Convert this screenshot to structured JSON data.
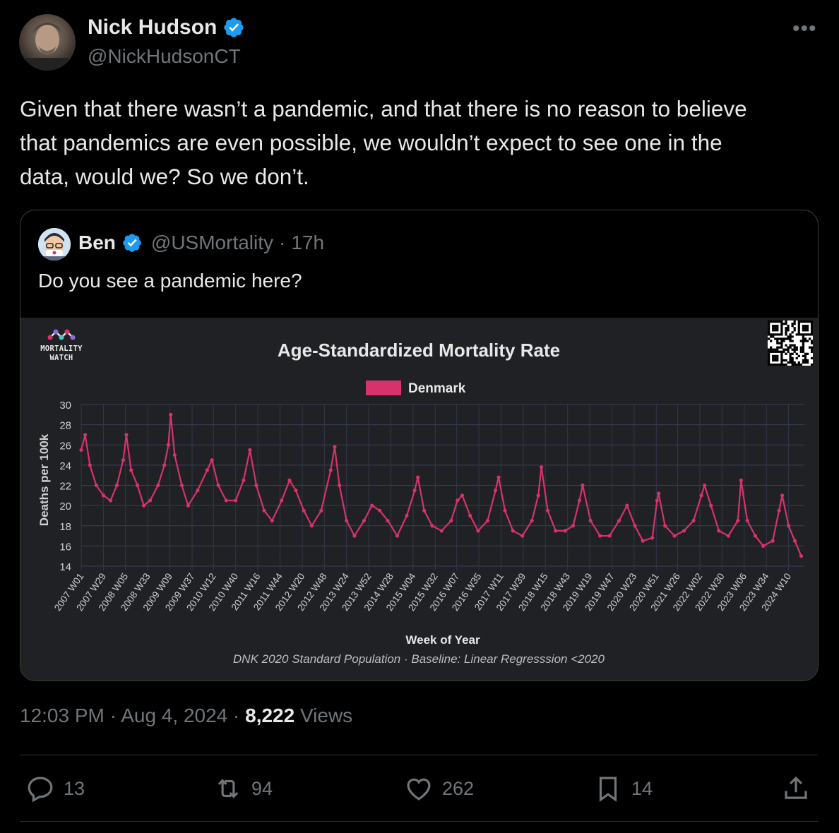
{
  "tweet": {
    "author_name": "Nick Hudson",
    "author_handle": "@NickHudsonCT",
    "text": "Given that there wasn’t a pandemic, and that there is no reason to believe\nthat pandemics are even possible, we wouldn’t expect to see one in the\ndata, would we? So we don’t.",
    "time": "12:03 PM",
    "date": "Aug 4, 2024",
    "views_count": "8,222",
    "views_label": "Views"
  },
  "quote": {
    "author_name": "Ben",
    "author_handle": "@USMortality",
    "age": "17h",
    "text": "Do you see a pandemic here?"
  },
  "logo": {
    "line1": "MORTALITY",
    "line2": "WATCH"
  },
  "actions": {
    "replies": "13",
    "reposts": "94",
    "likes": "262",
    "bookmarks": "14"
  },
  "colors": {
    "series": "#d6336c",
    "verified": "#1d9bf0",
    "muted": "#71767b"
  },
  "chart_data": {
    "type": "line",
    "title": "Age-Standardized Mortality Rate",
    "xlabel": "Week of Year",
    "ylabel": "Deaths per 100k",
    "caption": "DNK 2020 Standard Population · Baseline: Linear Regresssion <2020",
    "legend": "top-center",
    "grid": true,
    "ylim": [
      14,
      30
    ],
    "yticks": [
      14,
      16,
      18,
      20,
      22,
      24,
      26,
      28,
      30
    ],
    "x_ticks": [
      "2007 W01",
      "2007 W29",
      "2008 W05",
      "2008 W33",
      "2009 W09",
      "2009 W37",
      "2010 W12",
      "2010 W40",
      "2011 W16",
      "2011 W44",
      "2012 W20",
      "2012 W48",
      "2013 W24",
      "2013 W52",
      "2014 W28",
      "2015 W04",
      "2015 W32",
      "2016 W07",
      "2016 W35",
      "2017 W11",
      "2017 W39",
      "2018 W15",
      "2018 W43",
      "2019 W19",
      "2019 W47",
      "2020 W23",
      "2020 W51",
      "2021 W26",
      "2022 W02",
      "2022 W30",
      "2023 W06",
      "2023 W34",
      "2024 W10"
    ],
    "series": [
      {
        "name": "Denmark",
        "color": "#d6336c",
        "points": [
          [
            "2007 W01",
            25.5
          ],
          [
            "2007 W06",
            27.0
          ],
          [
            "2007 W12",
            24.0
          ],
          [
            "2007 W20",
            22.0
          ],
          [
            "2007 W29",
            21.0
          ],
          [
            "2007 W38",
            20.5
          ],
          [
            "2007 W46",
            22.0
          ],
          [
            "2008 W02",
            24.5
          ],
          [
            "2008 W06",
            27.0
          ],
          [
            "2008 W12",
            23.5
          ],
          [
            "2008 W20",
            22.0
          ],
          [
            "2008 W28",
            20.0
          ],
          [
            "2008 W36",
            20.5
          ],
          [
            "2008 W46",
            22.0
          ],
          [
            "2009 W02",
            24.0
          ],
          [
            "2009 W07",
            26.0
          ],
          [
            "2009 W10",
            29.0
          ],
          [
            "2009 W15",
            25.0
          ],
          [
            "2009 W24",
            22.0
          ],
          [
            "2009 W32",
            20.0
          ],
          [
            "2009 W44",
            21.5
          ],
          [
            "2010 W04",
            23.5
          ],
          [
            "2010 W10",
            24.5
          ],
          [
            "2010 W18",
            22.0
          ],
          [
            "2010 W28",
            20.5
          ],
          [
            "2010 W40",
            20.5
          ],
          [
            "2010 W50",
            22.5
          ],
          [
            "2011 W06",
            25.5
          ],
          [
            "2011 W14",
            22.0
          ],
          [
            "2011 W24",
            19.5
          ],
          [
            "2011 W34",
            18.5
          ],
          [
            "2011 W46",
            20.5
          ],
          [
            "2012 W04",
            22.5
          ],
          [
            "2012 W12",
            21.5
          ],
          [
            "2012 W22",
            19.5
          ],
          [
            "2012 W32",
            18.0
          ],
          [
            "2012 W44",
            19.5
          ],
          [
            "2013 W04",
            23.5
          ],
          [
            "2013 W09",
            25.8
          ],
          [
            "2013 W15",
            22.0
          ],
          [
            "2013 W24",
            18.5
          ],
          [
            "2013 W34",
            17.0
          ],
          [
            "2013 W46",
            18.5
          ],
          [
            "2014 W04",
            20.0
          ],
          [
            "2014 W14",
            19.5
          ],
          [
            "2014 W24",
            18.5
          ],
          [
            "2014 W36",
            17.0
          ],
          [
            "2014 W48",
            19.0
          ],
          [
            "2015 W06",
            21.5
          ],
          [
            "2015 W10",
            22.8
          ],
          [
            "2015 W18",
            19.5
          ],
          [
            "2015 W28",
            18.0
          ],
          [
            "2015 W40",
            17.5
          ],
          [
            "2015 W52",
            18.5
          ],
          [
            "2016 W08",
            20.5
          ],
          [
            "2016 W14",
            21.0
          ],
          [
            "2016 W24",
            19.0
          ],
          [
            "2016 W34",
            17.5
          ],
          [
            "2016 W46",
            18.5
          ],
          [
            "2017 W04",
            21.5
          ],
          [
            "2017 W08",
            22.8
          ],
          [
            "2017 W16",
            19.5
          ],
          [
            "2017 W26",
            17.5
          ],
          [
            "2017 W38",
            17.0
          ],
          [
            "2017 W50",
            18.5
          ],
          [
            "2018 W06",
            21.0
          ],
          [
            "2018 W10",
            23.8
          ],
          [
            "2018 W18",
            19.5
          ],
          [
            "2018 W28",
            17.5
          ],
          [
            "2018 W40",
            17.5
          ],
          [
            "2018 W50",
            18.0
          ],
          [
            "2019 W06",
            20.5
          ],
          [
            "2019 W10",
            22.0
          ],
          [
            "2019 W20",
            18.5
          ],
          [
            "2019 W32",
            17.0
          ],
          [
            "2019 W44",
            17.0
          ],
          [
            "2020 W04",
            18.5
          ],
          [
            "2020 W14",
            20.0
          ],
          [
            "2020 W24",
            18.0
          ],
          [
            "2020 W34",
            16.5
          ],
          [
            "2020 W46",
            16.8
          ],
          [
            "2020 W52",
            20.5
          ],
          [
            "2021 W02",
            21.2
          ],
          [
            "2021 W10",
            18.0
          ],
          [
            "2021 W22",
            17.0
          ],
          [
            "2021 W34",
            17.5
          ],
          [
            "2021 W46",
            18.5
          ],
          [
            "2022 W04",
            21.0
          ],
          [
            "2022 W08",
            22.0
          ],
          [
            "2022 W16",
            20.0
          ],
          [
            "2022 W26",
            17.5
          ],
          [
            "2022 W38",
            17.0
          ],
          [
            "2022 W50",
            18.5
          ],
          [
            "2023 W02",
            22.5
          ],
          [
            "2023 W10",
            18.5
          ],
          [
            "2023 W20",
            17.0
          ],
          [
            "2023 W30",
            16.0
          ],
          [
            "2023 W42",
            16.5
          ],
          [
            "2023 W50",
            19.5
          ],
          [
            "2024 W02",
            21.0
          ],
          [
            "2024 W10",
            18.0
          ],
          [
            "2024 W18",
            16.5
          ],
          [
            "2024 W26",
            15.0
          ]
        ]
      }
    ]
  }
}
